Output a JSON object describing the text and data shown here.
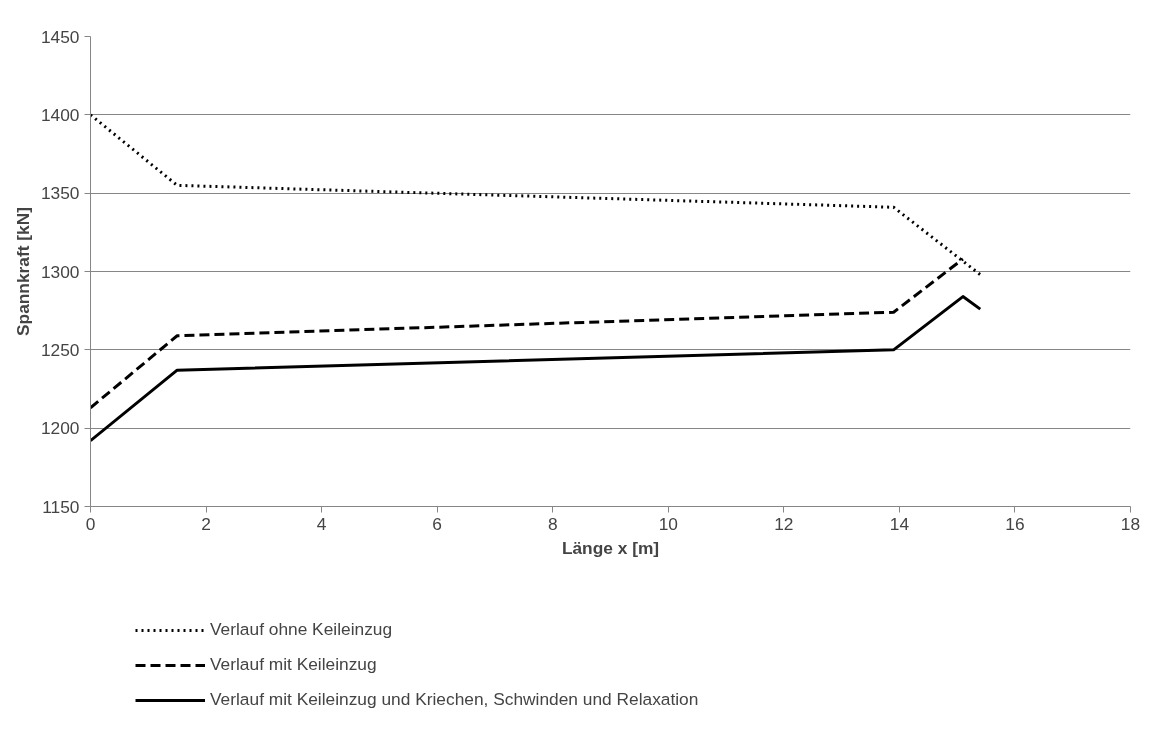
{
  "chart_data": {
    "type": "line",
    "xlabel": "Länge x [m]",
    "ylabel": "Spannkraft [kN]",
    "xlim": [
      0,
      18
    ],
    "xticks": [
      0,
      2,
      4,
      6,
      8,
      10,
      12,
      14,
      16,
      18
    ],
    "ylim": [
      1150,
      1450
    ],
    "yticks": [
      1150,
      1200,
      1250,
      1300,
      1350,
      1400,
      1450
    ],
    "grid": "y",
    "legend": "bottom",
    "marker": "none",
    "series": [
      {
        "name": "Verlauf ohne Keileinzug",
        "color": "#000000",
        "line_style": "dotted",
        "x": [
          0,
          1.5,
          13.9,
          15.4
        ],
        "values": [
          1400,
          1355,
          1341,
          1298
        ]
      },
      {
        "name": "Verlauf mit Keileinzug",
        "color": "#000000",
        "line_style": "dashed",
        "x": [
          0,
          1.5,
          13.9,
          15.1
        ],
        "values": [
          1213,
          1259,
          1274,
          1308
        ]
      },
      {
        "name": "Verlauf mit Keileinzug und Kriechen, Schwinden und Relaxation",
        "color": "#000000",
        "line_style": "solid",
        "x": [
          0,
          1.5,
          13.9,
          15.1,
          15.4
        ],
        "values": [
          1192,
          1237,
          1250,
          1284,
          1276
        ]
      }
    ]
  }
}
